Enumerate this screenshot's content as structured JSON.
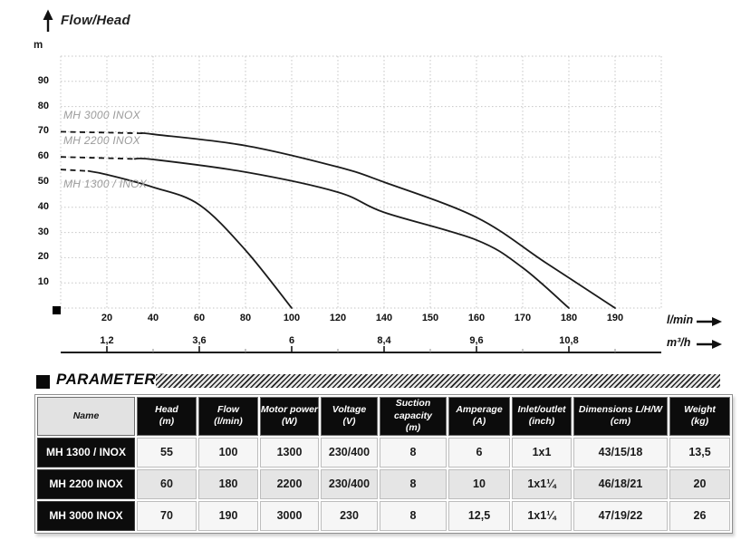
{
  "chart_data": {
    "type": "line",
    "title": "Flow/Head",
    "ylabel": "m",
    "xlabel_primary": "l/min",
    "xlabel_secondary": "m³/h",
    "ylim": [
      0,
      100
    ],
    "grid": true,
    "y_ticks": [
      10,
      20,
      30,
      40,
      50,
      60,
      70,
      80,
      90
    ],
    "x_ticks_lmin": [
      20,
      40,
      60,
      80,
      100,
      120,
      140,
      150,
      160,
      170,
      180,
      190
    ],
    "x_ticks_m3h": [
      {
        "flow": 20,
        "label": "1,2"
      },
      {
        "flow": 60,
        "label": "3,6"
      },
      {
        "flow": 100,
        "label": "6"
      },
      {
        "flow": 140,
        "label": "8,4"
      },
      {
        "flow": 160,
        "label": "9,6"
      },
      {
        "flow": 180,
        "label": "10,8"
      }
    ],
    "series": [
      {
        "name": "MH 1300 / INOX",
        "dashed_points": [
          [
            0,
            55
          ],
          [
            12,
            54.4
          ]
        ],
        "points": [
          [
            12,
            54.4
          ],
          [
            20,
            53
          ],
          [
            40,
            48
          ],
          [
            60,
            41
          ],
          [
            80,
            23
          ],
          [
            100,
            0
          ]
        ]
      },
      {
        "name": "MH 2200 INOX",
        "dashed_points": [
          [
            0,
            60
          ],
          [
            32,
            59.2
          ]
        ],
        "points": [
          [
            32,
            59.2
          ],
          [
            40,
            59
          ],
          [
            80,
            54
          ],
          [
            120,
            46
          ],
          [
            140,
            38
          ],
          [
            160,
            27
          ],
          [
            170,
            16
          ],
          [
            180,
            0
          ]
        ]
      },
      {
        "name": "MH 3000 INOX",
        "dashed_points": [
          [
            0,
            70
          ],
          [
            35,
            69.4
          ]
        ],
        "points": [
          [
            35,
            69.4
          ],
          [
            40,
            69
          ],
          [
            80,
            64.5
          ],
          [
            120,
            56
          ],
          [
            140,
            50
          ],
          [
            160,
            36
          ],
          [
            175,
            18
          ],
          [
            190,
            0
          ]
        ]
      }
    ]
  },
  "parameters": {
    "title": "PARAMETERS",
    "columns": [
      {
        "label": "Name",
        "unit": ""
      },
      {
        "label": "Head",
        "unit": "(m)"
      },
      {
        "label": "Flow",
        "unit": "(l/min)"
      },
      {
        "label": "Motor power",
        "unit": "(W)"
      },
      {
        "label": "Voltage",
        "unit": "(V)"
      },
      {
        "label": "Suction capacity",
        "unit": "(m)"
      },
      {
        "label": "Amperage",
        "unit": "(A)"
      },
      {
        "label": "Inlet/outlet",
        "unit": "(inch)"
      },
      {
        "label": "Dimensions L/H/W",
        "unit": "(cm)"
      },
      {
        "label": "Weight",
        "unit": "(kg)"
      }
    ],
    "rows": [
      {
        "name": "MH 1300 / INOX",
        "values": [
          "55",
          "100",
          "1300",
          "230/400",
          "8",
          "6",
          "1x1",
          "43/15/18",
          "13,5"
        ]
      },
      {
        "name": "MH 2200 INOX",
        "values": [
          "60",
          "180",
          "2200",
          "230/400",
          "8",
          "10",
          "1x1¼",
          "46/18/21",
          "20"
        ]
      },
      {
        "name": "MH 3000 INOX",
        "values": [
          "70",
          "190",
          "3000",
          "230",
          "8",
          "12,5",
          "1x1¼",
          "47/19/22",
          "26"
        ]
      }
    ]
  }
}
